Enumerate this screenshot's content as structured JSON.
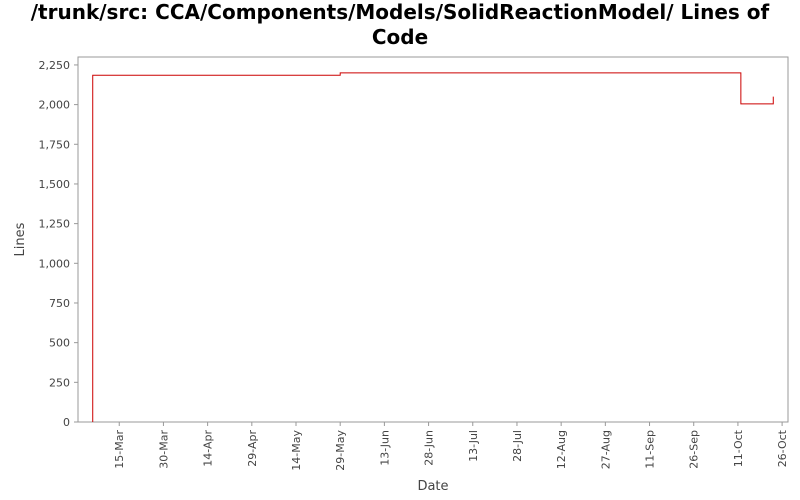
{
  "chart_data": {
    "type": "line",
    "title_lines": [
      "/trunk/src: CCA/Components/Models/SolidReactionModel/ Lines of",
      "Code"
    ],
    "xlabel": "Date",
    "ylabel": "Lines",
    "ylim": [
      0,
      2300
    ],
    "yticks": [
      0,
      250,
      500,
      750,
      1000,
      1250,
      1500,
      1750,
      2000,
      2250
    ],
    "ytick_labels": [
      "0",
      "250",
      "500",
      "750",
      "1,000",
      "1,250",
      "1,500",
      "1,750",
      "2,000",
      "2,250"
    ],
    "xlim": [
      "2008-03-01",
      "2008-10-28"
    ],
    "xticks": [
      "2008-03-15",
      "2008-03-30",
      "2008-04-14",
      "2008-04-29",
      "2008-05-14",
      "2008-05-29",
      "2008-06-13",
      "2008-06-28",
      "2008-07-13",
      "2008-07-28",
      "2008-08-12",
      "2008-08-27",
      "2008-09-11",
      "2008-09-26",
      "2008-10-11",
      "2008-10-26"
    ],
    "xtick_labels": [
      "15-Mar",
      "30-Mar",
      "14-Apr",
      "29-Apr",
      "14-May",
      "29-May",
      "13-Jun",
      "28-Jun",
      "13-Jul",
      "28-Jul",
      "12-Aug",
      "27-Aug",
      "11-Sep",
      "26-Sep",
      "11-Oct",
      "26-Oct"
    ],
    "grid": false,
    "line_color": "#cc0000",
    "series": [
      {
        "step": true,
        "x": [
          "2008-03-06",
          "2008-03-06",
          "2008-05-29",
          "2008-10-12",
          "2008-10-23",
          "2008-10-23"
        ],
        "y": [
          0,
          2185,
          2200,
          2005,
          2005,
          2050
        ]
      }
    ]
  }
}
